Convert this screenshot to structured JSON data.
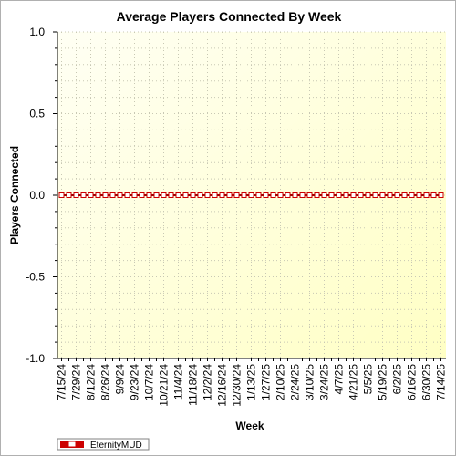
{
  "chart_data": {
    "type": "line",
    "title": "Average Players Connected By Week",
    "xlabel": "Week",
    "ylabel": "Players Connected",
    "ylim": [
      -1.0,
      1.0
    ],
    "y_ticks": [
      "1.0",
      "0.5",
      "0.0",
      "-0.5",
      "-1.0"
    ],
    "y_tick_values": [
      1.0,
      0.5,
      0.0,
      -0.5,
      -1.0
    ],
    "x": [
      "7/15/24",
      "7/22/24",
      "7/29/24",
      "8/5/24",
      "8/12/24",
      "8/19/24",
      "8/26/24",
      "9/2/24",
      "9/9/24",
      "9/16/24",
      "9/23/24",
      "9/30/24",
      "10/7/24",
      "10/14/24",
      "10/21/24",
      "10/28/24",
      "11/4/24",
      "11/11/24",
      "11/18/24",
      "11/25/24",
      "12/2/24",
      "12/9/24",
      "12/16/24",
      "12/23/24",
      "12/30/24",
      "1/6/25",
      "1/13/25",
      "1/20/25",
      "1/27/25",
      "2/3/25",
      "2/10/25",
      "2/17/25",
      "2/24/25",
      "3/3/25",
      "3/10/25",
      "3/17/25",
      "3/24/25",
      "3/31/25",
      "4/7/25",
      "4/14/25",
      "4/21/25",
      "4/28/25",
      "5/5/25",
      "5/12/25",
      "5/19/25",
      "5/26/25",
      "6/2/25",
      "6/9/25",
      "6/16/25",
      "6/23/25",
      "6/30/25",
      "7/7/25",
      "7/14/25"
    ],
    "x_tick_labels": [
      "7/15/24",
      "7/29/24",
      "8/12/24",
      "8/26/24",
      "9/9/24",
      "9/23/24",
      "10/7/24",
      "10/21/24",
      "11/4/24",
      "11/18/24",
      "12/2/24",
      "12/16/24",
      "12/30/24",
      "1/13/25",
      "1/27/25",
      "2/10/25",
      "2/24/25",
      "3/10/25",
      "3/24/25",
      "4/7/25",
      "4/21/25",
      "5/5/25",
      "5/19/25",
      "6/2/25",
      "6/16/25",
      "6/30/25",
      "7/14/25"
    ],
    "series": [
      {
        "name": "EternityMUD",
        "color": "#cc0000",
        "values": [
          0,
          0,
          0,
          0,
          0,
          0,
          0,
          0,
          0,
          0,
          0,
          0,
          0,
          0,
          0,
          0,
          0,
          0,
          0,
          0,
          0,
          0,
          0,
          0,
          0,
          0,
          0,
          0,
          0,
          0,
          0,
          0,
          0,
          0,
          0,
          0,
          0,
          0,
          0,
          0,
          0,
          0,
          0,
          0,
          0,
          0,
          0,
          0,
          0,
          0,
          0,
          0,
          0
        ]
      }
    ],
    "grid": true,
    "legend_position": "bottom-left",
    "plot_background": [
      "#fffff0",
      "#ffffc8"
    ]
  }
}
